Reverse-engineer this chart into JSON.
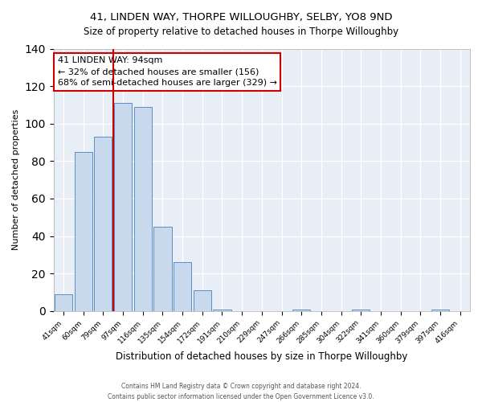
{
  "title": "41, LINDEN WAY, THORPE WILLOUGHBY, SELBY, YO8 9ND",
  "subtitle": "Size of property relative to detached houses in Thorpe Willoughby",
  "xlabel": "Distribution of detached houses by size in Thorpe Willoughby",
  "ylabel": "Number of detached properties",
  "bar_labels": [
    "41sqm",
    "60sqm",
    "79sqm",
    "97sqm",
    "116sqm",
    "135sqm",
    "154sqm",
    "172sqm",
    "191sqm",
    "210sqm",
    "229sqm",
    "247sqm",
    "266sqm",
    "285sqm",
    "304sqm",
    "322sqm",
    "341sqm",
    "360sqm",
    "379sqm",
    "397sqm",
    "416sqm"
  ],
  "bar_values": [
    9,
    85,
    93,
    111,
    109,
    45,
    26,
    11,
    1,
    0,
    0,
    0,
    1,
    0,
    0,
    1,
    0,
    0,
    0,
    1,
    0
  ],
  "bar_color": "#c9d9ed",
  "bar_edge_color": "#5b8ec4",
  "vline_index": 3,
  "vline_color": "#cc0000",
  "ylim": [
    0,
    140
  ],
  "yticks": [
    0,
    20,
    40,
    60,
    80,
    100,
    120,
    140
  ],
  "annotation_title": "41 LINDEN WAY: 94sqm",
  "annotation_line1": "← 32% of detached houses are smaller (156)",
  "annotation_line2": "68% of semi-detached houses are larger (329) →",
  "annotation_box_color": "white",
  "annotation_box_edge": "#cc0000",
  "footer1": "Contains HM Land Registry data © Crown copyright and database right 2024.",
  "footer2": "Contains public sector information licensed under the Open Government Licence v3.0.",
  "bg_color": "#ffffff",
  "plot_bg_color": "#e8eef5",
  "grid_color": "#ffffff",
  "spine_color": "#aaaaaa"
}
